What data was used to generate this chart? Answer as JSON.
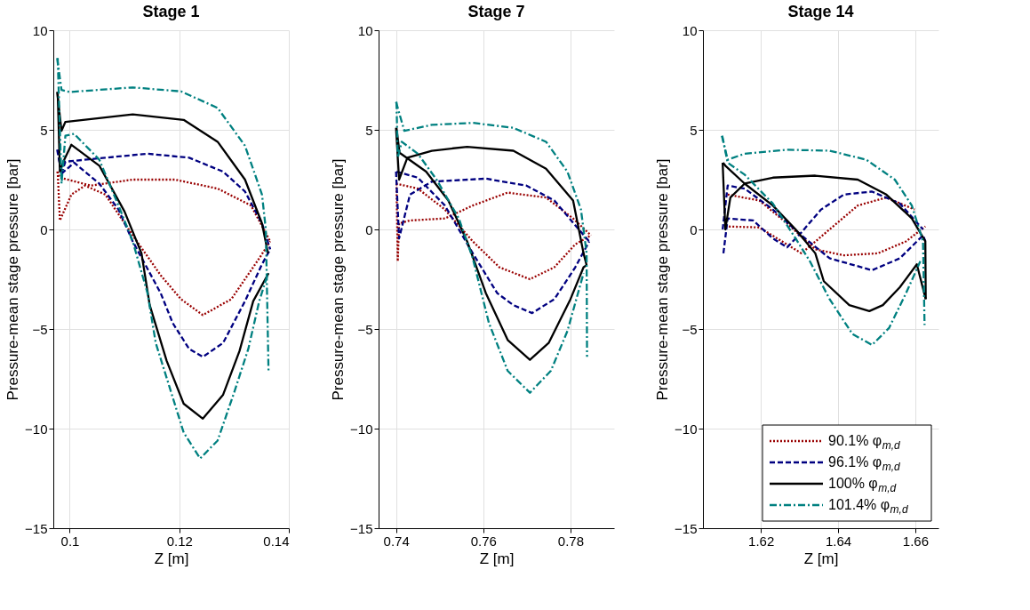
{
  "chart_data": [
    {
      "type": "line",
      "title": "Stage 1",
      "xlabel": "Z [m]",
      "ylabel": "Pressure-mean stage pressure [bar]",
      "xlim": [
        0.097,
        0.14
      ],
      "xticks": [
        {
          "value": 0.1,
          "label": "0.1"
        },
        0.12,
        0.14
      ],
      "ylim": [
        -15,
        10
      ],
      "yticks": [
        -15,
        -10,
        -5,
        0,
        5,
        10
      ],
      "grid": true,
      "legend": false,
      "series": [
        {
          "color": "#990000",
          "line_style": "dotted",
          "x": [
            0.0977,
            0.0982,
            0.1038,
            0.1115,
            0.1192,
            0.127,
            0.1331,
            0.1366
          ],
          "values": [
            2.9,
            2.6,
            2.2,
            2.5,
            2.5,
            2.05,
            1.2,
            -0.6
          ]
        },
        {
          "color": "#990000",
          "line_style": "dotted",
          "x": [
            0.0978,
            0.0982,
            0.1003,
            0.1028,
            0.1065,
            0.1115,
            0.1166,
            0.1203,
            0.1243,
            0.1295,
            0.1346,
            0.1366
          ],
          "values": [
            2.9,
            0.45,
            1.75,
            2.2,
            1.75,
            -0.3,
            -2.3,
            -3.5,
            -4.3,
            -3.5,
            -1.45,
            -0.6
          ]
        },
        {
          "color": "#000080",
          "line_style": "dashed",
          "x": [
            0.0977,
            0.0985,
            0.0992,
            0.1065,
            0.1142,
            0.1218,
            0.128,
            0.132,
            0.1351,
            0.1366
          ],
          "values": [
            4.0,
            2.8,
            3.4,
            3.6,
            3.8,
            3.6,
            2.9,
            1.9,
            0.3,
            -1.0
          ]
        },
        {
          "color": "#000080",
          "line_style": "dashed",
          "x": [
            0.0978,
            0.0985,
            0.1008,
            0.1054,
            0.1089,
            0.1115,
            0.1166,
            0.1188,
            0.1218,
            0.1243,
            0.128,
            0.132,
            0.1351,
            0.1366
          ],
          "values": [
            4.0,
            2.8,
            3.35,
            2.3,
            1.0,
            -0.6,
            -3.2,
            -4.7,
            -6.0,
            -6.4,
            -5.7,
            -3.6,
            -1.75,
            -1.0
          ]
        },
        {
          "color": "#000000",
          "line_style": "solid",
          "x": [
            0.0977,
            0.0985,
            0.0992,
            0.1115,
            0.1208,
            0.127,
            0.132,
            0.1351,
            0.1362
          ],
          "values": [
            6.9,
            4.95,
            5.4,
            5.78,
            5.5,
            4.4,
            2.5,
            0.3,
            -1.2
          ]
        },
        {
          "color": "#000000",
          "line_style": "solid",
          "x": [
            0.0978,
            0.0982,
            0.099,
            0.1003,
            0.1054,
            0.11,
            0.1131,
            0.1146,
            0.1177,
            0.1208,
            0.1243,
            0.128,
            0.131,
            0.1335,
            0.1363
          ],
          "values": [
            6.9,
            2.9,
            3.5,
            4.25,
            3.2,
            0.9,
            -1.2,
            -3.8,
            -6.6,
            -8.75,
            -9.5,
            -8.3,
            -6.1,
            -3.6,
            -2.2
          ]
        },
        {
          "color": "#008080",
          "line_style": "dashdot",
          "x": [
            0.0977,
            0.0985,
            0.1,
            0.1115,
            0.1203,
            0.127,
            0.132,
            0.1351,
            0.1358,
            0.1363
          ],
          "values": [
            8.6,
            7.0,
            6.9,
            7.13,
            6.93,
            6.1,
            4.2,
            1.75,
            0.0,
            -7.2
          ]
        },
        {
          "color": "#008080",
          "line_style": "dashdot",
          "x": [
            0.0978,
            0.0985,
            0.0992,
            0.1008,
            0.1054,
            0.1089,
            0.1115,
            0.1142,
            0.1157,
            0.1182,
            0.1208,
            0.1238,
            0.127,
            0.13,
            0.1326,
            0.1346,
            0.1362
          ],
          "values": [
            8.6,
            2.3,
            4.7,
            4.8,
            3.5,
            1.2,
            -0.6,
            -3.2,
            -5.7,
            -7.9,
            -10.2,
            -11.5,
            -10.6,
            -8.2,
            -6.0,
            -3.6,
            -2.2
          ]
        }
      ]
    },
    {
      "type": "line",
      "title": "Stage 7",
      "xlabel": "Z [m]",
      "ylabel": "Pressure-mean stage pressure [bar]",
      "xlim": [
        0.736,
        0.79
      ],
      "xticks": [
        0.74,
        0.76,
        0.78
      ],
      "ylim": [
        -15,
        10
      ],
      "yticks": [
        -15,
        -10,
        -5,
        0,
        5,
        10
      ],
      "grid": true,
      "legend": false,
      "series": [
        {
          "color": "#990000",
          "line_style": "dotted",
          "x": [
            0.74,
            0.745,
            0.7512,
            0.7576,
            0.7637,
            0.7707,
            0.7763,
            0.7811,
            0.7847
          ],
          "values": [
            2.3,
            2.05,
            1.0,
            -0.6,
            -1.9,
            -2.5,
            -1.9,
            -0.75,
            -0.3
          ]
        },
        {
          "color": "#990000",
          "line_style": "dotted",
          "x": [
            0.7401,
            0.7404,
            0.7407,
            0.7432,
            0.7512,
            0.7576,
            0.7656,
            0.7744,
            0.7806,
            0.7847
          ],
          "values": [
            2.3,
            -1.6,
            0.3,
            0.45,
            0.55,
            1.2,
            1.85,
            1.6,
            0.55,
            -0.3
          ]
        },
        {
          "color": "#000080",
          "line_style": "dashed",
          "x": [
            0.74,
            0.7407,
            0.7432,
            0.7482,
            0.7606,
            0.7699,
            0.7763,
            0.7819,
            0.7843
          ],
          "values": [
            2.9,
            -0.45,
            1.75,
            2.4,
            2.55,
            2.2,
            1.45,
            0.0,
            -0.6
          ]
        },
        {
          "color": "#000080",
          "line_style": "dashed",
          "x": [
            0.7401,
            0.745,
            0.7512,
            0.7576,
            0.7632,
            0.7669,
            0.7712,
            0.7763,
            0.7811,
            0.7843
          ],
          "values": [
            2.9,
            2.6,
            1.2,
            -1.2,
            -3.2,
            -3.8,
            -4.2,
            -3.5,
            -1.9,
            -0.6
          ]
        },
        {
          "color": "#000000",
          "line_style": "solid",
          "x": [
            0.74,
            0.7407,
            0.7426,
            0.7482,
            0.7563,
            0.7669,
            0.7744,
            0.7806,
            0.783,
            0.7837
          ],
          "values": [
            5.1,
            2.5,
            3.6,
            3.95,
            4.15,
            3.95,
            3.05,
            1.45,
            -1.2,
            -1.8
          ]
        },
        {
          "color": "#000000",
          "line_style": "solid",
          "x": [
            0.7401,
            0.7408,
            0.7469,
            0.752,
            0.7563,
            0.7606,
            0.7656,
            0.7707,
            0.775,
            0.78,
            0.783,
            0.7837
          ],
          "values": [
            5.1,
            3.85,
            2.9,
            1.45,
            -0.6,
            -3.2,
            -5.55,
            -6.55,
            -5.7,
            -3.5,
            -1.9,
            -1.8
          ]
        },
        {
          "color": "#008080",
          "line_style": "dashdot",
          "x": [
            0.74,
            0.7419,
            0.7482,
            0.7576,
            0.7669,
            0.7744,
            0.7793,
            0.7824,
            0.7837,
            0.7838
          ],
          "values": [
            6.4,
            4.95,
            5.25,
            5.35,
            5.1,
            4.4,
            2.9,
            1.0,
            -1.2,
            -6.4
          ]
        },
        {
          "color": "#008080",
          "line_style": "dashdot",
          "x": [
            0.7401,
            0.7404,
            0.7413,
            0.745,
            0.7493,
            0.7544,
            0.7576,
            0.7613,
            0.7656,
            0.7707,
            0.7755,
            0.7793,
            0.783
          ],
          "values": [
            6.4,
            3.6,
            4.4,
            3.8,
            2.5,
            0.55,
            -1.45,
            -4.7,
            -7.1,
            -8.2,
            -7.1,
            -5.1,
            -2.2
          ]
        }
      ]
    },
    {
      "type": "line",
      "title": "Stage 14",
      "xlabel": "Z [m]",
      "ylabel": "Pressure-mean stage pressure [bar]",
      "xlim": [
        1.605,
        1.666
      ],
      "xticks": [
        1.62,
        1.64,
        1.66
      ],
      "ylim": [
        -15,
        10
      ],
      "yticks": [
        -15,
        -10,
        -5,
        0,
        5,
        10
      ],
      "grid": true,
      "legend": "bottom right",
      "series": [
        {
          "name": "90.1% φ$_{m,d}$",
          "color": "#990000",
          "line_style": "dotted",
          "x": [
            1.6114,
            1.6196,
            1.6268,
            1.6341,
            1.6415,
            1.6503,
            1.6576,
            1.6626
          ],
          "values": [
            1.75,
            1.45,
            0.3,
            -1.0,
            -1.3,
            -1.2,
            -0.6,
            0.15
          ]
        },
        {
          "color": "#990000",
          "line_style": "dotted",
          "x": [
            1.6108,
            1.6196,
            1.6305,
            1.6378,
            1.6451,
            1.6525,
            1.6598
          ],
          "values": [
            0.15,
            0.1,
            -1.2,
            0.0,
            1.2,
            1.6,
            1.0
          ]
        },
        {
          "name": "96.1% φ$_{m,d}$",
          "color": "#000080",
          "line_style": "dashed",
          "x": [
            1.6101,
            1.6114,
            1.6158,
            1.6231,
            1.6305,
            1.6378,
            1.6488,
            1.656,
            1.662,
            1.6626
          ],
          "values": [
            0.0,
            2.2,
            2.05,
            1.0,
            -0.3,
            -1.45,
            -2.05,
            -1.45,
            -0.3,
            -0.6
          ]
        },
        {
          "color": "#000080",
          "line_style": "dashed",
          "x": [
            1.6103,
            1.6114,
            1.618,
            1.6231,
            1.6268,
            1.6305,
            1.6356,
            1.6415,
            1.6488,
            1.656,
            1.662
          ],
          "values": [
            -1.2,
            0.55,
            0.45,
            -0.45,
            -0.9,
            -0.15,
            1.0,
            1.75,
            1.9,
            1.3,
            0.0
          ]
        },
        {
          "name": "100% φ$_{m,d}$",
          "color": "#000000",
          "line_style": "solid",
          "x": [
            1.6101,
            1.6108,
            1.6121,
            1.6158,
            1.6231,
            1.6341,
            1.6451,
            1.6525,
            1.6591,
            1.6626,
            1.6627
          ],
          "values": [
            3.35,
            0.0,
            1.6,
            2.3,
            2.6,
            2.7,
            2.5,
            1.75,
            0.55,
            -0.6,
            -3.5
          ]
        },
        {
          "color": "#000000",
          "line_style": "solid",
          "x": [
            1.6102,
            1.6108,
            1.6158,
            1.6231,
            1.629,
            1.6341,
            1.6363,
            1.6429,
            1.6481,
            1.6516,
            1.656,
            1.6604,
            1.6627
          ],
          "values": [
            3.35,
            3.2,
            2.3,
            1.2,
            0.0,
            -1.2,
            -2.6,
            -3.8,
            -4.1,
            -3.8,
            -2.9,
            -1.75,
            -3.5
          ]
        },
        {
          "name": "101.4% φ$_{m,d}$",
          "color": "#008080",
          "line_style": "dashdot",
          "x": [
            1.6099,
            1.6114,
            1.6158,
            1.6268,
            1.6378,
            1.6473,
            1.6547,
            1.6591,
            1.662,
            1.6624
          ],
          "values": [
            4.7,
            3.5,
            3.8,
            4.0,
            3.95,
            3.5,
            2.5,
            1.2,
            -0.6,
            -4.8
          ]
        },
        {
          "color": "#008080",
          "line_style": "dashdot",
          "x": [
            1.61,
            1.6114,
            1.6158,
            1.6231,
            1.629,
            1.6327,
            1.6378,
            1.6437,
            1.6488,
            1.6532,
            1.6576,
            1.6613
          ],
          "values": [
            4.7,
            3.35,
            2.75,
            1.3,
            -0.45,
            -1.6,
            -3.5,
            -5.25,
            -5.8,
            -4.95,
            -3.2,
            -1.6
          ]
        }
      ]
    }
  ]
}
